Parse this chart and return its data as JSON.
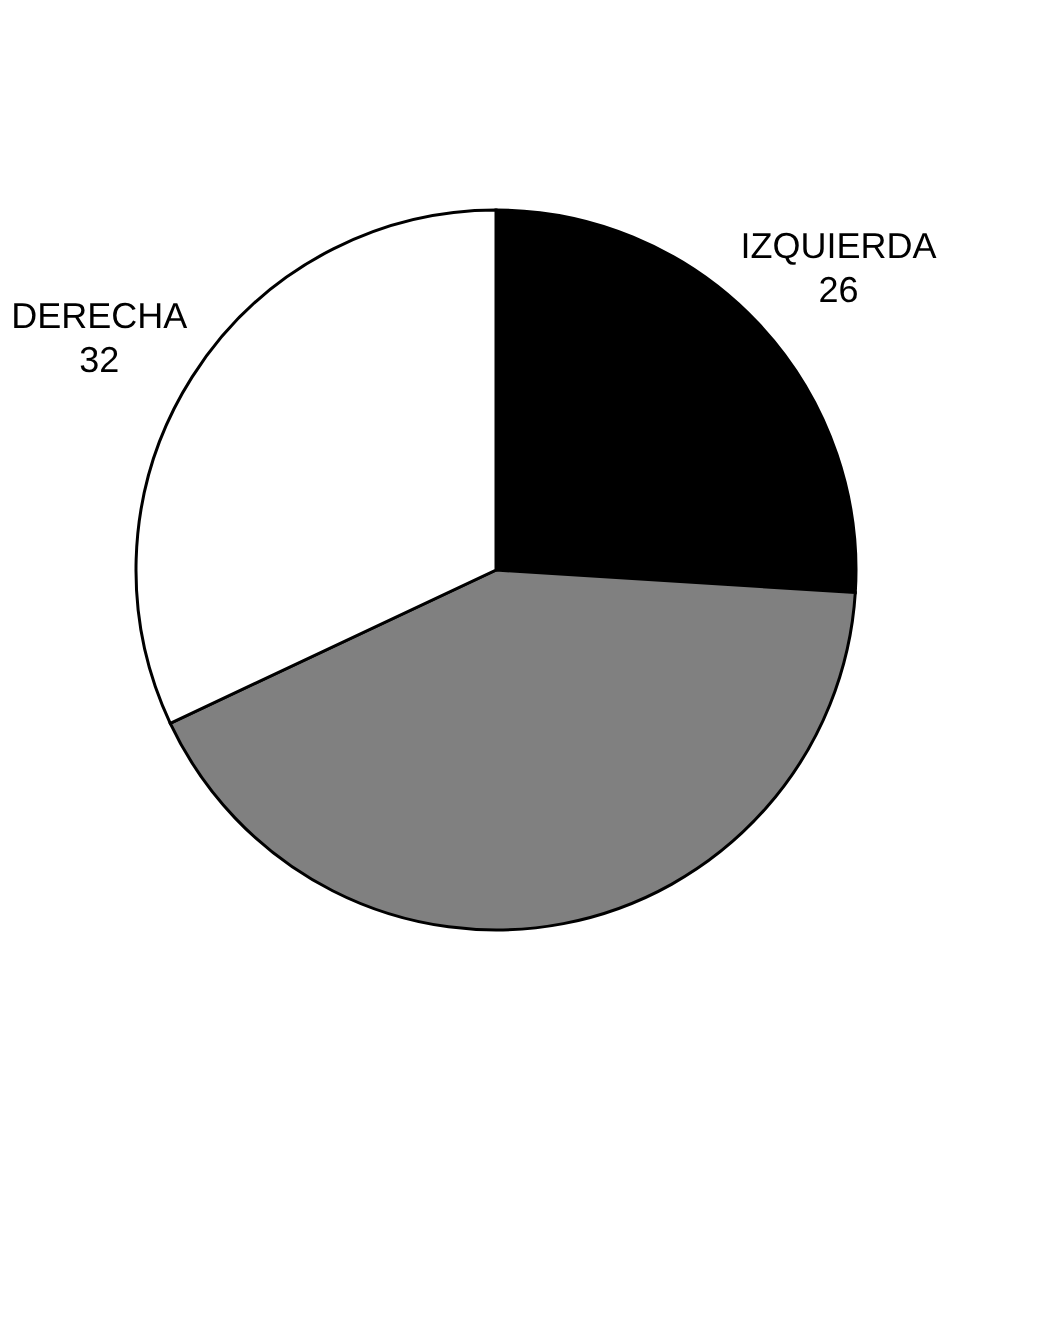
{
  "chart_data": {
    "type": "pie",
    "categories": [
      "IZQUIERDA",
      null,
      "DERECHA"
    ],
    "values": [
      26,
      42,
      32
    ],
    "colors": [
      "#000000",
      "#808080",
      "#ffffff"
    ],
    "value_labels": [
      "26",
      null,
      "32"
    ]
  }
}
